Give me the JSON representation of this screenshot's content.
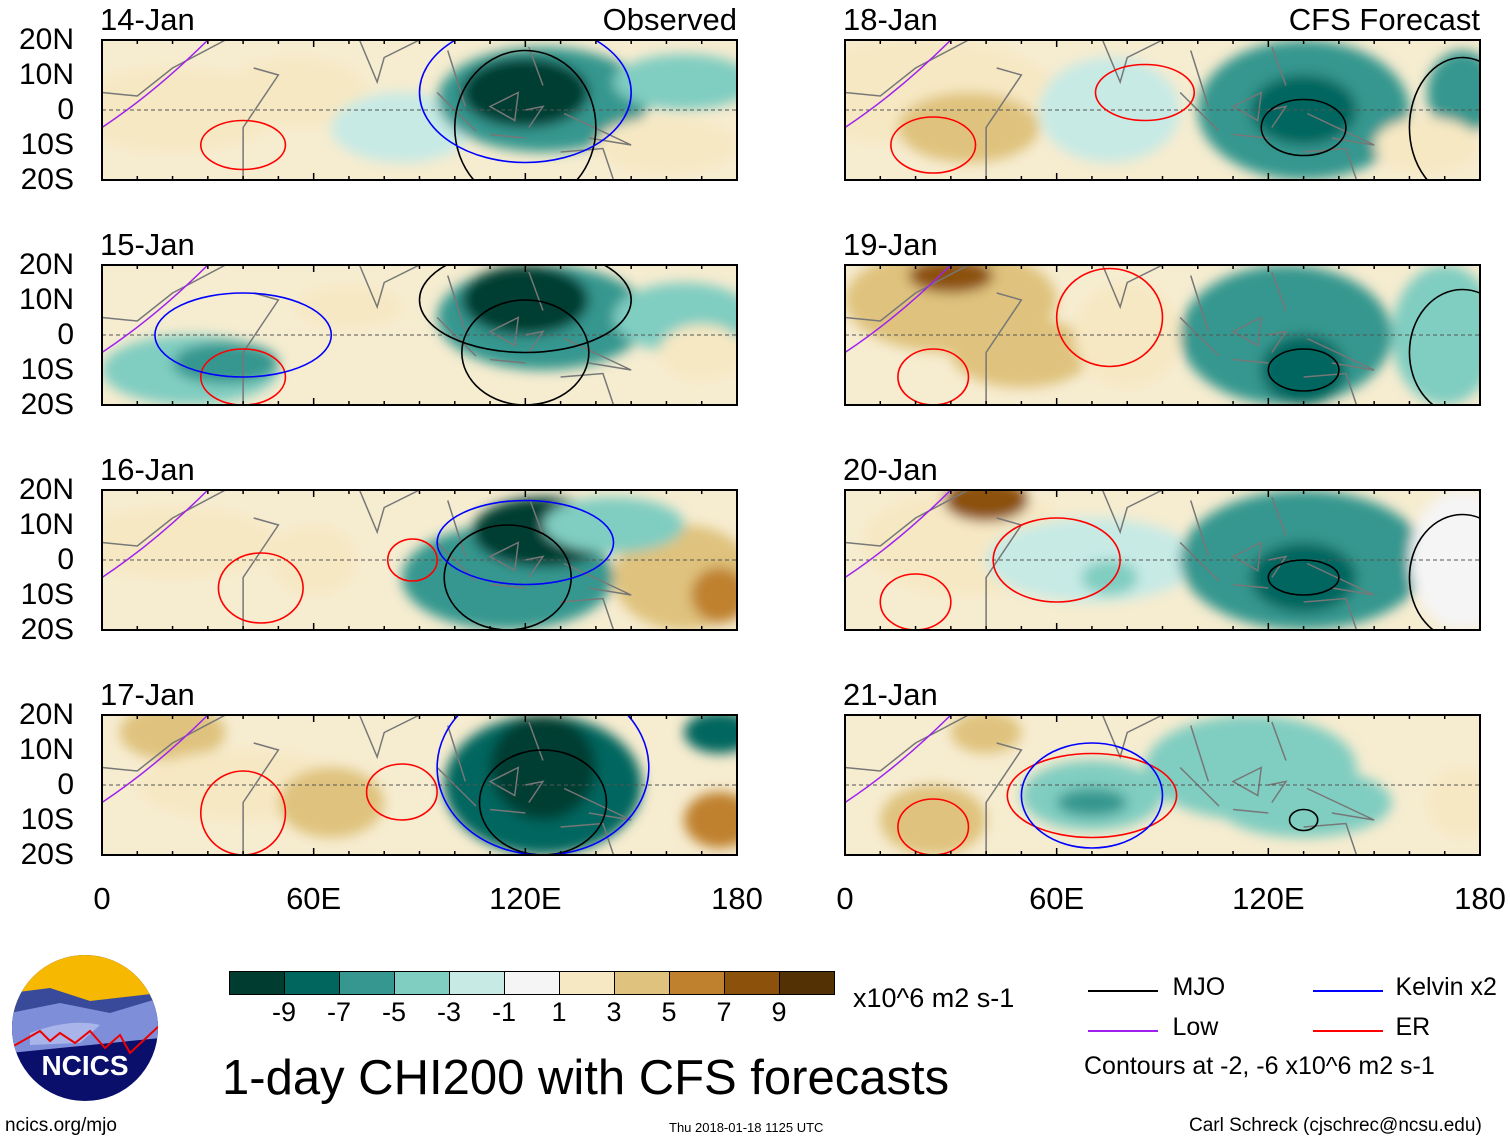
{
  "panels": [
    {
      "date": "14-Jan",
      "label": "Observed"
    },
    {
      "date": "15-Jan"
    },
    {
      "date": "16-Jan"
    },
    {
      "date": "17-Jan"
    },
    {
      "date": "18-Jan",
      "label": "CFS Forecast"
    },
    {
      "date": "19-Jan"
    },
    {
      "date": "20-Jan"
    },
    {
      "date": "21-Jan"
    }
  ],
  "lat_ticks": [
    "20N",
    "10N",
    "0",
    "10S",
    "20S"
  ],
  "lon_ticks": [
    "0",
    "60E",
    "120E",
    "180"
  ],
  "colorbar": {
    "colors": [
      "#003c30",
      "#01665e",
      "#35978f",
      "#80cdc1",
      "#c7eae5",
      "#f5f5f5",
      "#f6e8c3",
      "#dfc27d",
      "#bf812d",
      "#8c510a",
      "#543005"
    ],
    "labels": [
      "-9",
      "-7",
      "-5",
      "-3",
      "-1",
      "1",
      "3",
      "5",
      "7",
      "9"
    ],
    "units": "x10^6 m2 s-1"
  },
  "title": "1-day CHI200 with CFS forecasts",
  "legend": {
    "items": [
      {
        "name": "MJO",
        "color": "#000000"
      },
      {
        "name": "Kelvin x2",
        "color": "#0000ff"
      },
      {
        "name": "Low",
        "color": "#a020f0"
      },
      {
        "name": "ER",
        "color": "#ff0000"
      }
    ],
    "note": "Contours at -2, -6 x10^6 m2 s-1"
  },
  "logo_text": "NCICS",
  "footer": {
    "url": "ncics.org/mjo",
    "timestamp": "Thu 2018-01-18 1125 UTC",
    "author": "Carl Schreck (cjschrec@ncsu.edu)"
  }
}
